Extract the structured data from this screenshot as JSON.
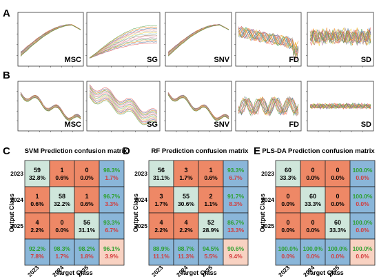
{
  "panel_letters": [
    "A",
    "B",
    "C",
    "D",
    "E"
  ],
  "spectra_labels": [
    "MSC",
    "SG",
    "SNV",
    "FD",
    "SD"
  ],
  "axis_labels": {
    "output_class": "Output Class",
    "target_class": "Target Class"
  },
  "classes": [
    "2023",
    "2024",
    "2025"
  ],
  "colors": {
    "diag": "#cfe6db",
    "off": "#ee8866",
    "summary": "#8ab6d9",
    "overall": "#f8d2c2",
    "pct_green": "#2ca02c",
    "pct_red": "#d33b3b",
    "line_gray": "#7c7c7c"
  },
  "chart_data": [
    {
      "type": "table",
      "title": "SVM Prediction confusion matrix",
      "rows": [
        [
          [
            "59",
            "32.8%"
          ],
          [
            "1",
            "0.6%"
          ],
          [
            "0",
            "0.0%"
          ],
          [
            "98.3%",
            "1.7%"
          ]
        ],
        [
          [
            "1",
            "0.6%"
          ],
          [
            "58",
            "32.2%"
          ],
          [
            "1",
            "0.6%"
          ],
          [
            "96.7%",
            "3.3%"
          ]
        ],
        [
          [
            "4",
            "2.2%"
          ],
          [
            "0",
            "0.0%"
          ],
          [
            "56",
            "31.1%"
          ],
          [
            "93.3%",
            "6.7%"
          ]
        ],
        [
          [
            "92.2%",
            "7.8%"
          ],
          [
            "98.3%",
            "1.7%"
          ],
          [
            "98.2%",
            "1.8%"
          ],
          [
            "96.1%",
            "3.9%"
          ]
        ]
      ]
    },
    {
      "type": "table",
      "title": "RF Prediction confusion matrix",
      "rows": [
        [
          [
            "56",
            "31.1%"
          ],
          [
            "3",
            "1.7%"
          ],
          [
            "1",
            "0.6%"
          ],
          [
            "93.3%",
            "6.7%"
          ]
        ],
        [
          [
            "3",
            "1.7%"
          ],
          [
            "55",
            "30.6%"
          ],
          [
            "2",
            "1.1%"
          ],
          [
            "91.7%",
            "8.3%"
          ]
        ],
        [
          [
            "4",
            "2.2%"
          ],
          [
            "4",
            "2.2%"
          ],
          [
            "52",
            "28.9%"
          ],
          [
            "86.7%",
            "13.3%"
          ]
        ],
        [
          [
            "88.9%",
            "11.1%"
          ],
          [
            "88.7%",
            "11.3%"
          ],
          [
            "94.5%",
            "5.5%"
          ],
          [
            "90.6%",
            "9.4%"
          ]
        ]
      ]
    },
    {
      "type": "table",
      "title": "PLS-DA Prediction confusion matrix",
      "rows": [
        [
          [
            "60",
            "33.3%"
          ],
          [
            "0",
            "0.0%"
          ],
          [
            "0",
            "0.0%"
          ],
          [
            "100.0%",
            "0.0%"
          ]
        ],
        [
          [
            "0",
            "0.0%"
          ],
          [
            "60",
            "33.3%"
          ],
          [
            "0",
            "0.0%"
          ],
          [
            "100.0%",
            "0.0%"
          ]
        ],
        [
          [
            "0",
            "0.0%"
          ],
          [
            "0",
            "0.0%"
          ],
          [
            "60",
            "33.3%"
          ],
          [
            "100.0%",
            "0.0%"
          ]
        ],
        [
          [
            "100.0%",
            "0.0%"
          ],
          [
            "100.0%",
            "0.0%"
          ],
          [
            "100.0%",
            "0.0%"
          ],
          [
            "100.0%",
            "0.0%"
          ]
        ]
      ]
    }
  ]
}
